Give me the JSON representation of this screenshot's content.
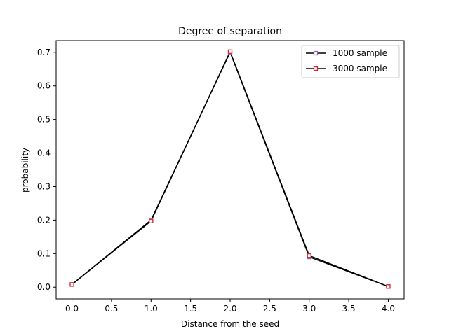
{
  "chart_data": {
    "type": "line",
    "title": "Degree of separation",
    "xlabel": "Distance from the seed",
    "ylabel": "probability",
    "x": [
      0,
      1,
      2,
      3,
      4
    ],
    "xlim": [
      -0.2,
      4.2
    ],
    "ylim": [
      -0.035,
      0.735
    ],
    "xticks": [
      0.0,
      0.5,
      1.0,
      1.5,
      2.0,
      2.5,
      3.0,
      3.5,
      4.0
    ],
    "xtick_labels": [
      "0.0",
      "0.5",
      "1.0",
      "1.5",
      "2.0",
      "2.5",
      "3.0",
      "3.5",
      "4.0"
    ],
    "yticks": [
      0.0,
      0.1,
      0.2,
      0.3,
      0.4,
      0.5,
      0.6,
      0.7
    ],
    "ytick_labels": [
      "0.0",
      "0.1",
      "0.2",
      "0.3",
      "0.4",
      "0.5",
      "0.6",
      "0.7"
    ],
    "grid": false,
    "legend_position": "top-right",
    "series": [
      {
        "name": "1000 sample",
        "values": [
          0.008,
          0.2,
          0.7,
          0.09,
          0.002
        ],
        "line_color": "#000000",
        "marker": "square",
        "marker_edge_color": "#9467bd",
        "marker_face_color": "#ffffff"
      },
      {
        "name": "3000 sample",
        "values": [
          0.008,
          0.197,
          0.702,
          0.094,
          0.002
        ],
        "line_color": "#000000",
        "marker": "square",
        "marker_edge_color": "#d62728",
        "marker_face_color": "#ffffff"
      }
    ]
  }
}
